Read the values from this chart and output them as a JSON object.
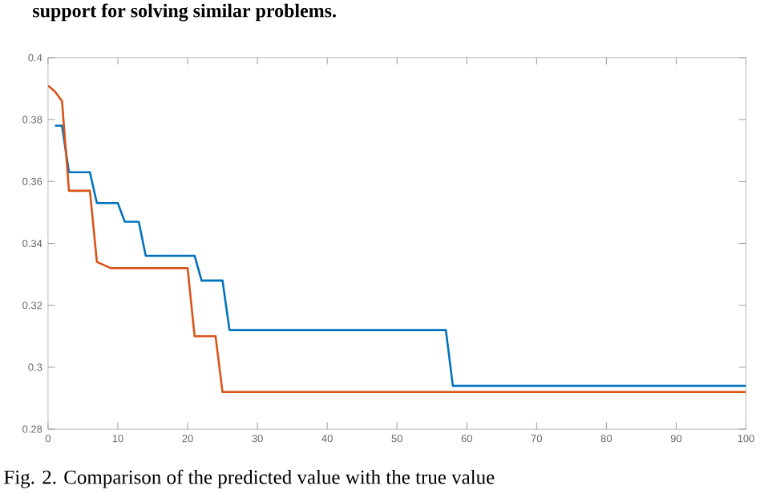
{
  "chart_data": {
    "type": "line",
    "series": [
      {
        "color": "#0072bd",
        "x": [
          1,
          2,
          3,
          6,
          7,
          10,
          11,
          13,
          14,
          21,
          22,
          25,
          26,
          57,
          58,
          100
        ],
        "values": [
          0.378,
          0.378,
          0.363,
          0.363,
          0.353,
          0.353,
          0.347,
          0.347,
          0.336,
          0.336,
          0.328,
          0.328,
          0.312,
          0.312,
          0.294,
          0.294
        ]
      },
      {
        "color": "#d95319",
        "x": [
          0,
          1,
          2,
          3,
          6,
          7,
          8,
          9,
          20,
          21,
          24,
          25,
          100
        ],
        "values": [
          0.391,
          0.389,
          0.386,
          0.357,
          0.357,
          0.334,
          0.333,
          0.332,
          0.332,
          0.31,
          0.31,
          0.292,
          0.292
        ]
      }
    ],
    "xlim": [
      0,
      100
    ],
    "ylim": [
      0.28,
      0.4
    ],
    "xticks": [
      0,
      10,
      20,
      30,
      40,
      50,
      60,
      70,
      80,
      90,
      100
    ],
    "yticks": [
      0.28,
      0.3,
      0.32,
      0.34,
      0.36,
      0.38,
      0.4
    ],
    "annotations": [
      "support for solving similar problems.",
      "Fig. 2. Comparison of the predicted value with the true value"
    ]
  }
}
